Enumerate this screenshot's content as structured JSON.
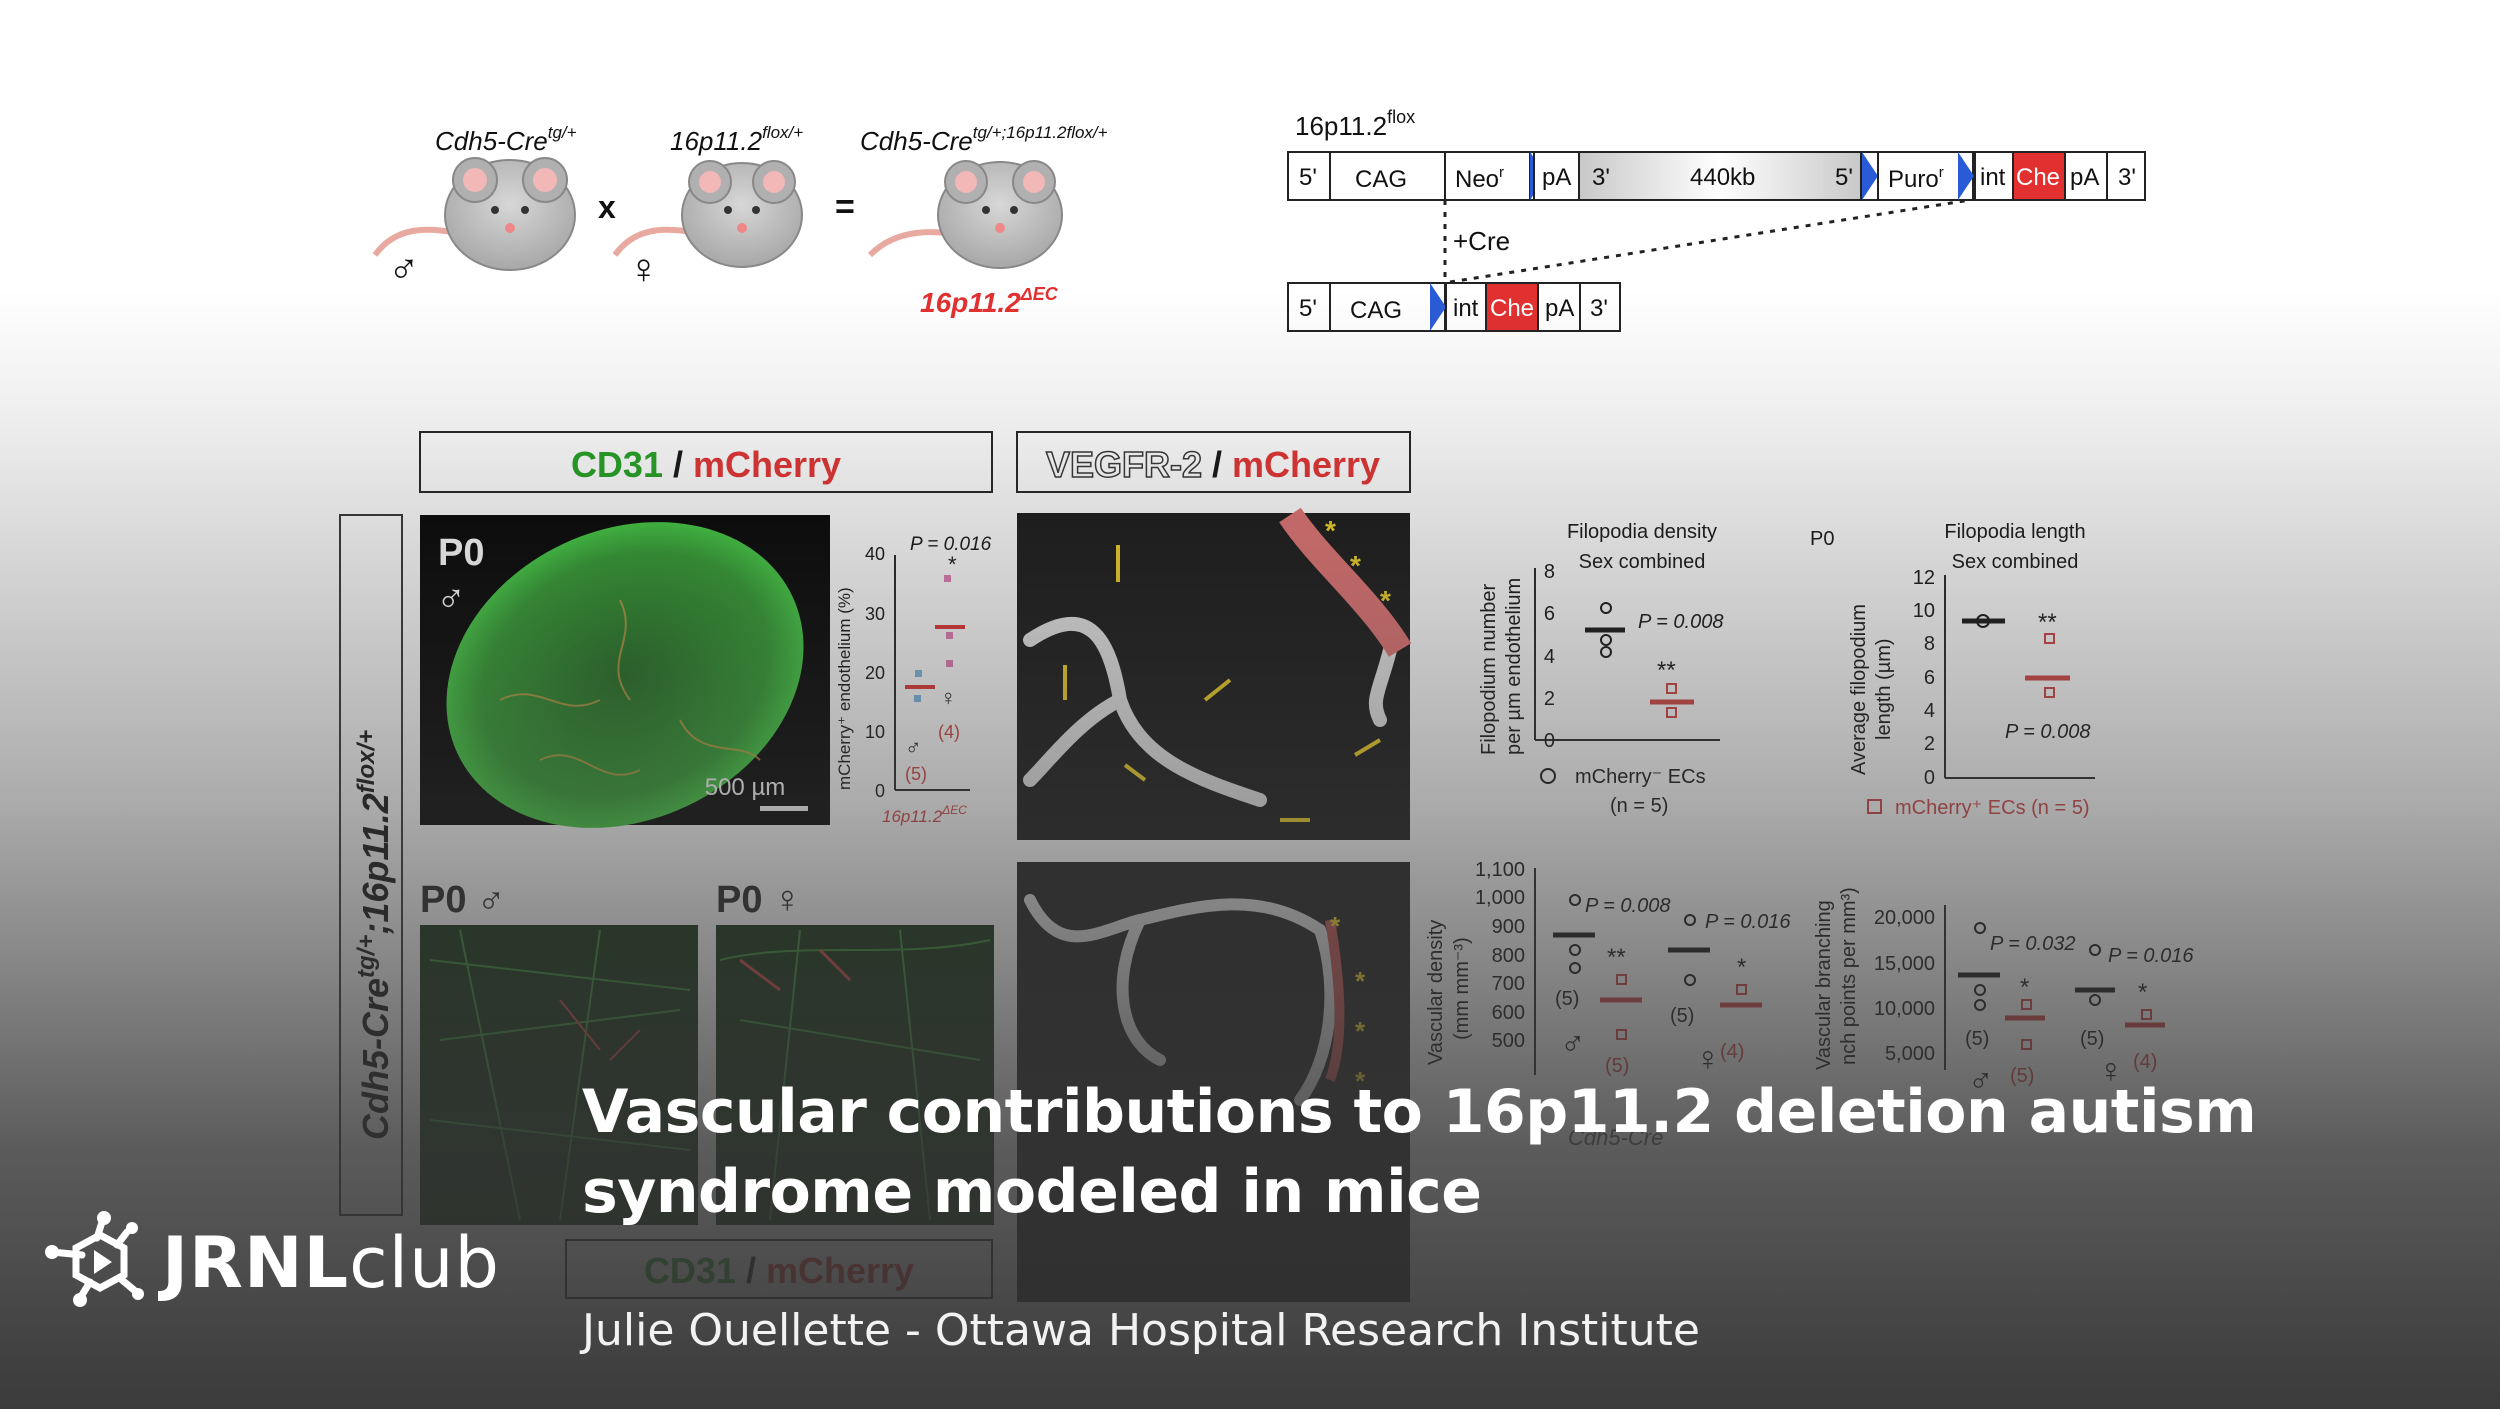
{
  "brand": {
    "bold": "JRNL",
    "light": "club"
  },
  "title": "Vascular contributions to 16p11.2 deletion autism syndrome modeled in mice",
  "subtitle": "Julie Ouellette - Ottawa Hospital Research Institute",
  "colors": {
    "red": "#e23030",
    "green": "#22a022",
    "title_text": "#ffffff",
    "overlay": "#3a3a3a"
  },
  "figure": {
    "mouse_labels": [
      "Cdh5-Cre",
      "tg/+",
      "16p11.2",
      "flox/+",
      "Cdh5-Cre",
      "tg/+;16p11.2",
      "flox/+"
    ],
    "operators": [
      "x",
      "="
    ],
    "sex_symbols": [
      "♂",
      "♀"
    ],
    "result_label": "16p11.2",
    "result_sup": "ΔEC",
    "construct_title": "16p11.2",
    "construct_title_sup": "flox",
    "construct_top": [
      "5'",
      "CAG",
      "Neo",
      "pA",
      "3'",
      "440kb",
      "5'",
      "Puro",
      "int",
      "Che",
      "pA",
      "3'"
    ],
    "construct_sup": "r",
    "cre_label": "+Cre",
    "construct_bottom": [
      "5'",
      "CAG",
      "int",
      "Che",
      "pA",
      "3'"
    ],
    "panel_header_1": {
      "a": "CD31",
      "sep": " / ",
      "b": "mCherry"
    },
    "panel_header_2": {
      "a": "VEGFR-2",
      "sep": " / ",
      "b": "mCherry"
    },
    "panel_header_3": {
      "a": "CD31",
      "sep": " / ",
      "b": "mCherry"
    },
    "side_label": "Cdh5-Cre",
    "side_label_sup1": "tg/+",
    "side_label_mid": ";16p11.2",
    "side_label_sup2": "flox/+",
    "p0": "P0",
    "scale_bar": "500 µm",
    "p0_male": "P0 ♂",
    "p0_female": "P0 ♀",
    "mini": {
      "p": "P = 0.016",
      "star": "*",
      "ylabel": "mCherry⁺ endothelium (%)",
      "ticks": [
        "40",
        "30",
        "20",
        "10",
        "0"
      ],
      "n1": "(5)",
      "n2": "(4)",
      "xlabel": "16p11.2",
      "xlabel_sup": "ΔEC"
    },
    "fil_density": {
      "title1": "Filopodia density",
      "title2": "Sex combined",
      "ylabel1": "Filopodium number",
      "ylabel2": "per µm endothelium",
      "ticks": [
        "8",
        "6",
        "4",
        "2",
        "0"
      ],
      "p": "P = 0.008",
      "stars": "**",
      "legend": "mCherry⁻ ECs",
      "legend_n": "(n = 5)"
    },
    "fil_length": {
      "p0": "P0",
      "title1": "Filopodia length",
      "title2": "Sex combined",
      "ylabel1": "Average filopodium",
      "ylabel2": "length (µm)",
      "ticks": [
        "12",
        "10",
        "8",
        "6",
        "4",
        "2",
        "0"
      ],
      "p": "P = 0.008",
      "stars": "**",
      "legend": "mCherry⁺ ECs (n = 5)"
    },
    "vasc_density": {
      "ylabel1": "Vascular density",
      "ylabel2": "(mm mm⁻³)",
      "ticks": [
        "1,100",
        "1,000",
        "900",
        "800",
        "700",
        "600",
        "500"
      ],
      "p1": "P = 0.008",
      "p2": "P = 0.016",
      "s1": "**",
      "s2": "*",
      "n1": "(5)",
      "n2": "(5)",
      "n3": "(5)",
      "n4": "(4)"
    },
    "vasc_branch": {
      "ylabel1": "Vascular branching",
      "ylabel2": "nch points per mm³)",
      "ticks": [
        "20,000",
        "15,000",
        "10,000",
        "5,000"
      ],
      "p1": "P = 0.032",
      "p2": "P = 0.016",
      "s1": "*",
      "s2": "*",
      "n1": "(5)",
      "n2": "(5)",
      "n3": "(5)",
      "n4": "(4)"
    },
    "bottom_legend": "Cdh5-Cre"
  }
}
